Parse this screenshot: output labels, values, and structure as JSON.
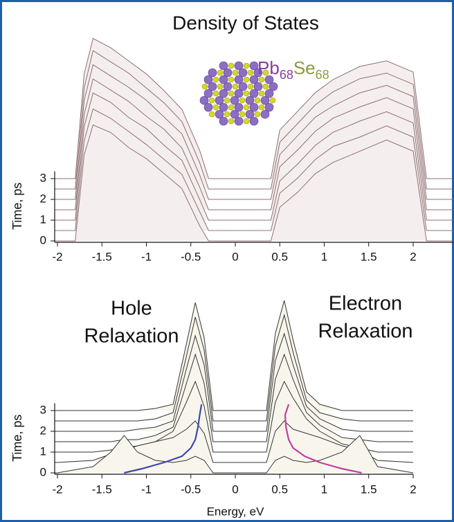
{
  "chart_data": [
    {
      "type": "waterfall",
      "title": "Density of States",
      "formula": [
        {
          "text": "Pb",
          "color": "#8a3c9c"
        },
        {
          "text": "68",
          "color": "#8a3c9c"
        },
        {
          "text": "Se",
          "color": "#8d9a3a"
        },
        {
          "text": "68",
          "color": "#8d9a3a"
        }
      ],
      "y_label": "Time, ps",
      "color": "#8c6f72",
      "fill": "#f5eeee",
      "energies": [
        -2,
        -1.8,
        -1.7,
        -1.6,
        -1.4,
        -1.2,
        -1.0,
        -0.8,
        -0.6,
        -0.4,
        -0.3,
        0.3,
        0.4,
        0.5,
        0.7,
        0.9,
        1.1,
        1.4,
        1.7,
        2.0,
        2.15,
        2.45
      ],
      "traces": [
        {
          "time": 3.0,
          "values": [
            0,
            0,
            5.6,
            7.5,
            7.0,
            6.3,
            5.6,
            4.7,
            3.7,
            1.5,
            0,
            0,
            0,
            2.6,
            3.6,
            4.6,
            5.3,
            6.0,
            6.3,
            5.7,
            0,
            0
          ]
        },
        {
          "time": 2.5,
          "values": [
            0,
            0,
            5.4,
            7.4,
            6.8,
            6.2,
            5.4,
            4.6,
            3.6,
            1.4,
            0,
            0,
            0,
            2.5,
            3.5,
            4.5,
            5.2,
            5.9,
            6.2,
            5.6,
            0,
            0
          ]
        },
        {
          "time": 2.0,
          "values": [
            0,
            0,
            5.3,
            7.2,
            6.6,
            6.0,
            5.3,
            4.4,
            3.5,
            1.3,
            0,
            0,
            0,
            2.4,
            3.4,
            4.4,
            5.0,
            5.7,
            6.1,
            5.5,
            0,
            0
          ]
        },
        {
          "time": 1.5,
          "values": [
            0,
            0,
            5.1,
            7.0,
            6.4,
            5.8,
            5.0,
            4.3,
            3.3,
            1.2,
            0,
            0,
            0,
            2.3,
            3.2,
            4.2,
            4.9,
            5.5,
            6.0,
            5.4,
            0,
            0
          ]
        },
        {
          "time": 1.0,
          "values": [
            0,
            0,
            5.0,
            6.8,
            6.3,
            5.5,
            4.9,
            4.0,
            3.2,
            1.1,
            0,
            0,
            0,
            2.1,
            3.0,
            4.0,
            4.7,
            5.3,
            5.8,
            5.2,
            0,
            0
          ]
        },
        {
          "time": 0.5,
          "values": [
            0,
            0,
            4.8,
            6.5,
            6.0,
            5.3,
            4.6,
            3.8,
            3.0,
            1.0,
            0,
            0,
            0,
            2.0,
            2.8,
            3.8,
            4.5,
            5.0,
            5.6,
            5.0,
            0,
            0
          ]
        },
        {
          "time": 0,
          "values": [
            0,
            0,
            4.6,
            6.2,
            5.8,
            5.0,
            4.4,
            3.6,
            2.8,
            0.8,
            0,
            0,
            0,
            1.8,
            2.6,
            3.6,
            4.2,
            4.8,
            5.4,
            4.8,
            0,
            0
          ]
        }
      ],
      "xlim": [
        -2,
        2.45
      ],
      "xticks": [
        -2,
        -1.5,
        -1,
        -0.5,
        0,
        0.5,
        1,
        1.5,
        2
      ],
      "ylim": [
        0,
        3.35
      ],
      "yticks": [
        0,
        1,
        2,
        3
      ]
    },
    {
      "type": "waterfall",
      "annotations": [
        [
          "Hole",
          "Relaxation"
        ],
        [
          "Electron",
          "Relaxation"
        ]
      ],
      "x_label": "Energy, eV",
      "y_label": "Time, ps",
      "color": "#333333",
      "fill": "#f8f6ec",
      "energies": [
        -2,
        -1.6,
        -1.4,
        -1.25,
        -1.1,
        -0.9,
        -0.7,
        -0.55,
        -0.45,
        -0.35,
        -0.25,
        0.35,
        0.45,
        0.55,
        0.65,
        0.8,
        0.95,
        1.2,
        1.4,
        1.6,
        2
      ],
      "traces": [
        {
          "time": 3.0,
          "values": [
            0,
            0,
            0,
            0,
            0,
            0.1,
            0.3,
            3.2,
            5.2,
            3.5,
            0,
            0,
            3.7,
            5.3,
            3.4,
            0.9,
            0.3,
            0,
            0,
            0,
            0
          ]
        },
        {
          "time": 2.5,
          "values": [
            0,
            0,
            0,
            0,
            0,
            0.1,
            0.4,
            3.1,
            5.0,
            3.4,
            0,
            0,
            3.6,
            5.1,
            3.3,
            1.0,
            0.4,
            0.1,
            0,
            0,
            0
          ]
        },
        {
          "time": 2.0,
          "values": [
            0,
            0,
            0,
            0,
            0.1,
            0.2,
            0.5,
            3.0,
            4.6,
            3.2,
            0,
            0,
            3.4,
            4.7,
            3.2,
            1.2,
            0.6,
            0.1,
            0,
            0,
            0
          ]
        },
        {
          "time": 1.5,
          "values": [
            0,
            0,
            0,
            0.1,
            0.1,
            0.3,
            0.7,
            2.8,
            4.2,
            2.8,
            0,
            0,
            3.0,
            4.2,
            3.0,
            1.4,
            0.8,
            0.2,
            0.1,
            0,
            0
          ]
        },
        {
          "time": 1.0,
          "values": [
            0,
            0,
            0.1,
            0.2,
            0.3,
            0.5,
            1.0,
            2.4,
            3.4,
            2.2,
            0,
            0,
            2.4,
            3.4,
            2.6,
            1.6,
            1.0,
            0.4,
            0.2,
            0,
            0
          ]
        },
        {
          "time": 0.5,
          "values": [
            0,
            0.1,
            0.4,
            0.6,
            0.8,
            1.0,
            1.2,
            1.6,
            2.0,
            1.4,
            0,
            0,
            1.5,
            2.0,
            1.6,
            1.4,
            1.2,
            0.8,
            0.6,
            0.1,
            0
          ]
        },
        {
          "time": 0,
          "values": [
            0,
            0.3,
            1.0,
            1.8,
            1.0,
            0.6,
            0.5,
            0.6,
            0.8,
            0.6,
            0,
            0,
            0.6,
            0.8,
            0.6,
            0.5,
            0.6,
            1.0,
            1.8,
            0.3,
            0
          ]
        }
      ],
      "series": [
        {
          "color": "#3b46b0",
          "x": [
            -1.25,
            -1.05,
            -0.8,
            -0.6,
            -0.5,
            -0.45,
            -0.42,
            -0.4,
            -0.38
          ],
          "values": [
            0,
            0.2,
            0.5,
            0.8,
            1.2,
            1.6,
            2.2,
            2.8,
            3.3
          ]
        },
        {
          "color": "#c23c9e",
          "x": [
            1.42,
            1.2,
            0.95,
            0.78,
            0.65,
            0.6,
            0.57,
            0.56,
            0.6
          ],
          "values": [
            0,
            0.2,
            0.5,
            0.8,
            1.2,
            1.6,
            2.2,
            2.8,
            3.3
          ]
        }
      ],
      "xlim": [
        -2,
        2
      ],
      "xticks": [
        -2,
        -1.5,
        -1,
        -0.5,
        0,
        0.5,
        1,
        1.5,
        2
      ],
      "ylim": [
        0,
        3.35
      ],
      "yticks": [
        0,
        1,
        2,
        3
      ]
    }
  ]
}
